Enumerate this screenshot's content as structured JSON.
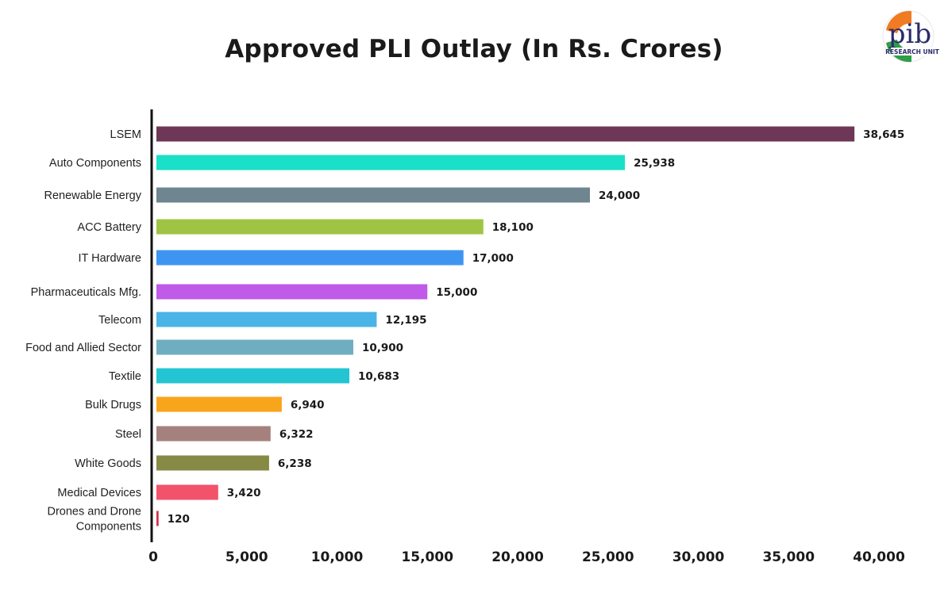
{
  "chart_data": {
    "type": "bar",
    "orientation": "horizontal",
    "title": "Approved PLI Outlay (In Rs. Crores)",
    "xlim": [
      0,
      40000
    ],
    "xticks": [
      "0",
      "5,000",
      "10,000",
      "15,000",
      "20,000",
      "25,000",
      "30,000",
      "35,000",
      "40,000"
    ],
    "grid": false,
    "categories": [
      [
        "LSEM"
      ],
      [
        "Auto Components"
      ],
      [
        "Renewable Energy"
      ],
      [
        "ACC Battery"
      ],
      [
        "IT Hardware"
      ],
      [
        "Pharmaceuticals Mfg."
      ],
      [
        "Telecom"
      ],
      [
        "Food and Allied Sector"
      ],
      [
        "Textile"
      ],
      [
        "Bulk Drugs"
      ],
      [
        "Steel"
      ],
      [
        "White Goods"
      ],
      [
        "Medical Devices"
      ],
      [
        "Drones and Drone",
        "Components"
      ]
    ],
    "values": [
      38645,
      25938,
      24000,
      18100,
      17000,
      15000,
      12195,
      10900,
      10683,
      6940,
      6322,
      6238,
      3420,
      120
    ],
    "value_labels": [
      "38,645",
      "25,938",
      "24,000",
      "18,100",
      "17,000",
      "15,000",
      "12,195",
      "10,900",
      "10,683",
      "6,940",
      "6,322",
      "6,238",
      "3,420",
      "120"
    ],
    "colors": [
      "#6e3657",
      "#19e0c6",
      "#6f8590",
      "#9fc444",
      "#3d95f1",
      "#c05ae9",
      "#4ab4e6",
      "#6faec1",
      "#22c5d1",
      "#f9a51c",
      "#a5817d",
      "#878a45",
      "#f2526a",
      "#d0334a"
    ]
  },
  "logo": {
    "text": "pib",
    "subtext": "RESEARCH UNIT"
  }
}
